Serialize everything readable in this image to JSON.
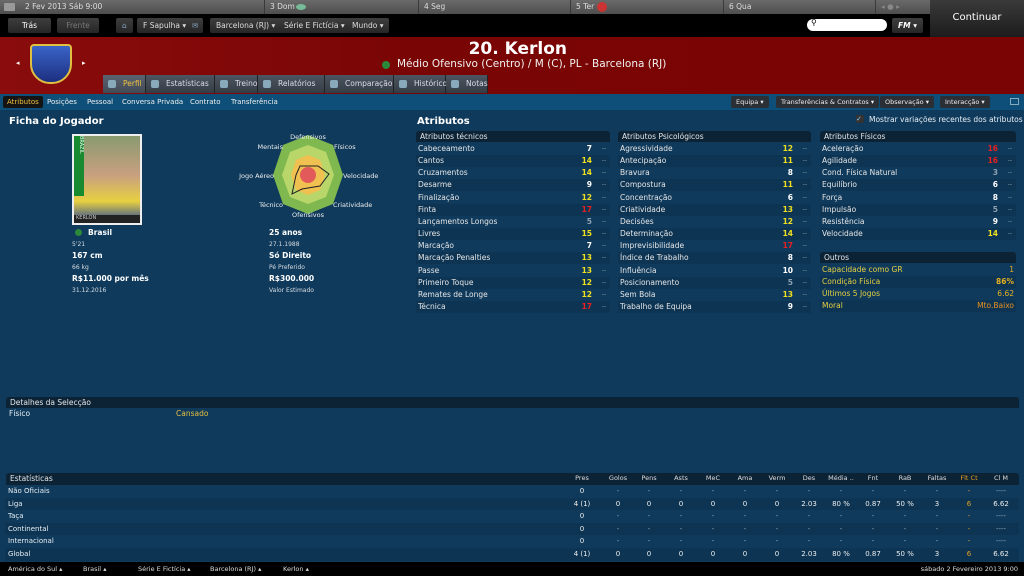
{
  "topbar": {
    "date": "2 Fev 2013 Sáb 9:00",
    "days": [
      "3 Dom",
      "4 Seg",
      "5 Ter",
      "6 Qua"
    ],
    "continue_label": "Continuar"
  },
  "nav": {
    "back": "Trás",
    "forward": "Frente",
    "manager": "F Sapulha",
    "club": "Barcelona (RJ)",
    "league": "Série E Fictícia",
    "world": "Mundo",
    "search_placeholder": "",
    "fm": "FM"
  },
  "player": {
    "title": "20. Kerlon",
    "subtitle": "Médio Ofensivo (Centro) / M (C), PL - Barcelona (RJ)",
    "photo_caption": "KERLON",
    "photo_band": "BRAZIL"
  },
  "tabs": [
    {
      "label": "Perfil",
      "active": true
    },
    {
      "label": "Estatísticas"
    },
    {
      "label": "Treino"
    },
    {
      "label": "Relatórios"
    },
    {
      "label": "Comparação"
    },
    {
      "label": "Histórico"
    },
    {
      "label": "Notas"
    }
  ],
  "subtabs": [
    {
      "label": "Atributos",
      "active": true
    },
    {
      "label": "Posições"
    },
    {
      "label": "Pessoal"
    },
    {
      "label": "Conversa Privada"
    },
    {
      "label": "Contrato"
    },
    {
      "label": "Transferência"
    }
  ],
  "actions": [
    "Equipa",
    "Transferências & Contratos",
    "Observação",
    "Interacção"
  ],
  "profile": {
    "heading": "Ficha do Jogador",
    "nationality": "Brasil",
    "caps": "5'21",
    "height": "167 cm",
    "weight": "66 kg",
    "wage": "R$11.000 por mês",
    "contract_end": "31.12.2016",
    "age": "25 anos",
    "dob": "27.1.1988",
    "foot": "Só Direito",
    "foot_label": "Pé Preferido",
    "value": "R$300.000",
    "value_label": "Valor Estimado",
    "radar_labels": [
      "Defensivos",
      "Físicos",
      "Velocidade",
      "Criatividade",
      "Ofensivos",
      "Técnico",
      "Jogo Aéreo",
      "Mentais"
    ]
  },
  "attributes": {
    "heading": "Atributos",
    "show_changes_label": "Mostrar variações recentes dos atributos",
    "show_changes": true,
    "technical": {
      "title": "Atributos técnicos",
      "items": [
        [
          "Cabeceamento",
          7
        ],
        [
          "Cantos",
          14
        ],
        [
          "Cruzamentos",
          14
        ],
        [
          "Desarme",
          9
        ],
        [
          "Finalização",
          12
        ],
        [
          "Finta",
          17
        ],
        [
          "Lançamentos Longos",
          5
        ],
        [
          "Livres",
          15
        ],
        [
          "Marcação",
          7
        ],
        [
          "Marcação Penalties",
          13
        ],
        [
          "Passe",
          13
        ],
        [
          "Primeiro Toque",
          12
        ],
        [
          "Remates de Longe",
          12
        ],
        [
          "Técnica",
          17
        ]
      ]
    },
    "mental": {
      "title": "Atributos Psicológicos",
      "items": [
        [
          "Agressividade",
          12
        ],
        [
          "Antecipação",
          11
        ],
        [
          "Bravura",
          8
        ],
        [
          "Compostura",
          11
        ],
        [
          "Concentração",
          6
        ],
        [
          "Criatividade",
          13
        ],
        [
          "Decisões",
          12
        ],
        [
          "Determinação",
          14
        ],
        [
          "Imprevisibilidade",
          17
        ],
        [
          "Índice de Trabalho",
          8
        ],
        [
          "Influência",
          10
        ],
        [
          "Posicionamento",
          5
        ],
        [
          "Sem Bola",
          13
        ],
        [
          "Trabalho de Equipa",
          9
        ]
      ]
    },
    "physical": {
      "title": "Atributos Físicos",
      "items": [
        [
          "Aceleração",
          16
        ],
        [
          "Agilidade",
          16
        ],
        [
          "Cond. Física Natural",
          3
        ],
        [
          "Equilíbrio",
          6
        ],
        [
          "Força",
          8
        ],
        [
          "Impulsão",
          5
        ],
        [
          "Resistência",
          9
        ],
        [
          "Velocidade",
          14
        ]
      ]
    },
    "other": {
      "title": "Outros",
      "items": [
        [
          "Capacidade como GR",
          "1"
        ],
        [
          "Condição Física",
          "86%"
        ],
        [
          "Últimos 5 Jogos",
          "6.62"
        ],
        [
          "Moral",
          "Mto.Baixo"
        ]
      ]
    }
  },
  "selection": {
    "title": "Detalhes da Selecção",
    "label": "Físico",
    "value": "Cansado"
  },
  "stats": {
    "title": "Estatísticas",
    "columns": [
      "Pres",
      "Golos",
      "Pens",
      "Asts",
      "MeC",
      "Ama",
      "Verm",
      "Des",
      "Média ..",
      "Fnt",
      "RaB",
      "Faltas",
      "Flt Ct",
      "Cl M"
    ],
    "rows": [
      {
        "label": "Não Oficiais",
        "values": [
          "0",
          "-",
          "-",
          "-",
          "-",
          "-",
          "-",
          "-",
          "-",
          "-",
          "-",
          "-",
          "-",
          "----"
        ]
      },
      {
        "label": "Liga",
        "values": [
          "4 (1)",
          "0",
          "0",
          "0",
          "0",
          "0",
          "0",
          "2.03",
          "80 %",
          "0.87",
          "50 %",
          "3",
          "6",
          "6.62"
        ]
      },
      {
        "label": "Taça",
        "values": [
          "0",
          "-",
          "-",
          "-",
          "-",
          "-",
          "-",
          "-",
          "-",
          "-",
          "-",
          "-",
          "-",
          "----"
        ]
      },
      {
        "label": "Continental",
        "values": [
          "0",
          "-",
          "-",
          "-",
          "-",
          "-",
          "-",
          "-",
          "-",
          "-",
          "-",
          "-",
          "-",
          "----"
        ]
      },
      {
        "label": "Internacional",
        "values": [
          "0",
          "-",
          "-",
          "-",
          "-",
          "-",
          "-",
          "-",
          "-",
          "-",
          "-",
          "-",
          "-",
          "----"
        ]
      },
      {
        "label": "Global",
        "values": [
          "4 (1)",
          "0",
          "0",
          "0",
          "0",
          "0",
          "0",
          "2.03",
          "80 %",
          "0.87",
          "50 %",
          "3",
          "6",
          "6.62"
        ]
      }
    ]
  },
  "bottombar": {
    "crumbs": [
      "América do Sul",
      "Brasil",
      "Série E Fictícia",
      "Barcelona (RJ)",
      "Kerlon"
    ],
    "datetime": "sábado 2 Fevereiro 2013 9:00"
  },
  "colors": {
    "header_red": "#7a0505",
    "accent_yellow": "#f0e020",
    "high_red": "#e02020",
    "other_gold": "#d9a520"
  }
}
